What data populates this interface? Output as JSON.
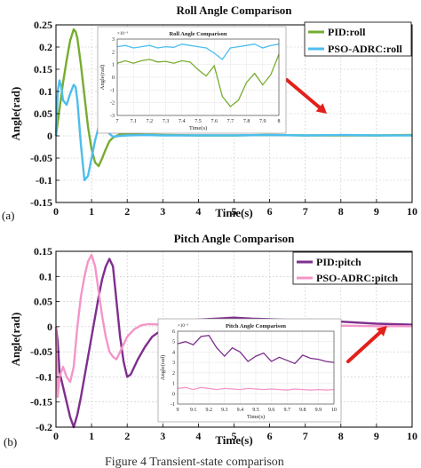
{
  "chart_data": [
    {
      "type": "line",
      "panel_label": "(a)",
      "title": "Roll Angle Comparison",
      "xlabel": "Time(s)",
      "ylabel": "Angle(rad)",
      "xlim": [
        0,
        10
      ],
      "ylim": [
        -0.15,
        0.25
      ],
      "xticks": [
        0,
        1,
        2,
        3,
        4,
        5,
        6,
        7,
        8,
        9,
        10
      ],
      "yticks": [
        -0.15,
        -0.1,
        -0.05,
        0,
        0.05,
        0.1,
        0.15,
        0.2,
        0.25
      ],
      "ytick_labels": [
        "-0.15",
        "-0.1",
        "-0.05",
        "0",
        "0.05",
        "0.1",
        "0.15",
        "0.2",
        "0.25"
      ],
      "grid": true,
      "legend": "top-right",
      "series": [
        {
          "name": "PID:roll",
          "color": "#77ac30",
          "x": [
            0,
            0.05,
            0.1,
            0.2,
            0.3,
            0.4,
            0.5,
            0.55,
            0.6,
            0.7,
            0.8,
            0.9,
            1.0,
            1.1,
            1.2,
            1.3,
            1.4,
            1.5,
            1.6,
            1.7,
            1.8,
            2.0,
            2.2,
            2.5,
            3,
            4,
            5,
            6,
            7,
            8,
            9,
            10
          ],
          "y": [
            0,
            0.03,
            0.06,
            0.12,
            0.17,
            0.215,
            0.24,
            0.235,
            0.22,
            0.16,
            0.09,
            0.02,
            -0.03,
            -0.06,
            -0.068,
            -0.05,
            -0.03,
            -0.012,
            -0.004,
            0,
            0.004,
            0.006,
            0.004,
            0.003,
            0.002,
            0.001,
            0.001,
            0.002,
            0.001,
            0.001,
            0.001,
            0.002
          ]
        },
        {
          "name": "PSO-ADRC:roll",
          "color": "#4dbeee",
          "x": [
            0,
            0.05,
            0.1,
            0.15,
            0.2,
            0.3,
            0.4,
            0.5,
            0.55,
            0.6,
            0.7,
            0.8,
            0.9,
            1.0,
            1.1,
            1.2,
            1.3,
            1.4,
            1.5,
            1.6,
            1.8,
            2.0,
            2.5,
            3,
            4,
            5,
            6,
            7,
            8,
            9,
            10
          ],
          "y": [
            0,
            0.1,
            0.125,
            0.11,
            0.08,
            0.07,
            0.095,
            0.115,
            0.11,
            0.08,
            -0.02,
            -0.1,
            -0.09,
            -0.05,
            -0.01,
            0.02,
            0.033,
            0.02,
            0.005,
            -0.002,
            0,
            0.001,
            0.002,
            0.001,
            0.001,
            0.001,
            0.002,
            0.001,
            0.002,
            0.001,
            0.001
          ]
        }
      ],
      "inset": {
        "title": "Roll Angle Comparison",
        "xlabel": "Time(s)",
        "ylabel": "Angle(rad)",
        "exponent_label": "×10⁻³",
        "xlim": [
          7,
          8
        ],
        "xticks": [
          7,
          7.1,
          7.2,
          7.3,
          7.4,
          7.5,
          7.6,
          7.7,
          7.8,
          7.9,
          8
        ],
        "xtick_labels": [
          "7",
          "7.1",
          "7.2",
          "7.3",
          "7.4",
          "7.5",
          "7.6",
          "7.7",
          "7.8",
          "7.9",
          "8"
        ],
        "ylim": [
          -3,
          3
        ],
        "yticks": [
          -3,
          -2,
          -1,
          0,
          1,
          2,
          3
        ],
        "series": [
          {
            "name": "PID:roll",
            "color": "#77ac30",
            "x": [
              7,
              7.05,
              7.1,
              7.15,
              7.2,
              7.25,
              7.3,
              7.35,
              7.4,
              7.45,
              7.5,
              7.55,
              7.6,
              7.65,
              7.7,
              7.75,
              7.8,
              7.85,
              7.9,
              7.95,
              8
            ],
            "y": [
              1.1,
              1.3,
              1.1,
              1.3,
              1.4,
              1.2,
              1.25,
              1.1,
              1.3,
              1.2,
              0.6,
              0.1,
              0.9,
              -1.5,
              -2.3,
              -1.8,
              -0.4,
              0.3,
              -0.6,
              0.2,
              1.8
            ]
          },
          {
            "name": "PSO-ADRC:roll",
            "color": "#4dbeee",
            "x": [
              7,
              7.05,
              7.1,
              7.15,
              7.2,
              7.25,
              7.3,
              7.35,
              7.4,
              7.45,
              7.5,
              7.55,
              7.6,
              7.65,
              7.7,
              7.75,
              7.8,
              7.85,
              7.9,
              7.95,
              8
            ],
            "y": [
              2.4,
              2.5,
              2.3,
              2.4,
              2.5,
              2.3,
              2.4,
              2.35,
              2.6,
              2.5,
              2.4,
              2.3,
              1.9,
              1.4,
              2.3,
              2.4,
              2.5,
              2.6,
              2.3,
              2.5,
              2.6
            ]
          }
        ]
      }
    },
    {
      "type": "line",
      "panel_label": "(b)",
      "title": "Pitch Angle Comparison",
      "xlabel": "Time(s)",
      "ylabel": "Angle(rad)",
      "xlim": [
        0,
        10
      ],
      "ylim": [
        -0.2,
        0.15
      ],
      "xticks": [
        0,
        1,
        2,
        3,
        4,
        5,
        6,
        7,
        8,
        9,
        10
      ],
      "yticks": [
        -0.2,
        -0.15,
        -0.1,
        -0.05,
        0,
        0.05,
        0.1,
        0.15
      ],
      "ytick_labels": [
        "-0.2",
        "-0.15",
        "-0.1",
        "-0.05",
        "0",
        "0.05",
        "0.1",
        "0.15"
      ],
      "grid": true,
      "legend": "top-right",
      "series": [
        {
          "name": "PID:pitch",
          "color": "#7e2f8e",
          "x": [
            0,
            0.05,
            0.1,
            0.2,
            0.3,
            0.4,
            0.5,
            0.6,
            0.7,
            0.8,
            0.9,
            1.0,
            1.1,
            1.2,
            1.3,
            1.4,
            1.5,
            1.6,
            1.7,
            1.8,
            1.9,
            2.0,
            2.1,
            2.3,
            2.5,
            2.7,
            3.0,
            3.5,
            4,
            4.5,
            5,
            5.5,
            6,
            7,
            8,
            9,
            10
          ],
          "y": [
            0,
            -0.03,
            -0.09,
            -0.12,
            -0.15,
            -0.18,
            -0.2,
            -0.175,
            -0.14,
            -0.1,
            -0.06,
            -0.02,
            0.02,
            0.06,
            0.095,
            0.12,
            0.135,
            0.12,
            0.05,
            -0.02,
            -0.07,
            -0.1,
            -0.095,
            -0.065,
            -0.04,
            -0.02,
            -0.005,
            0.008,
            0.014,
            0.016,
            0.018,
            0.016,
            0.015,
            0.012,
            0.01,
            0.006,
            0.004
          ]
        },
        {
          "name": "PSO-ADRC:pitch",
          "color": "#f495c8",
          "x": [
            0,
            0.05,
            0.1,
            0.2,
            0.3,
            0.4,
            0.5,
            0.6,
            0.7,
            0.8,
            0.9,
            1.0,
            1.1,
            1.2,
            1.3,
            1.4,
            1.5,
            1.6,
            1.7,
            1.8,
            1.9,
            2.0,
            2.2,
            2.4,
            2.6,
            3.0,
            3.5,
            4,
            5,
            6,
            7,
            8,
            9,
            10
          ],
          "y": [
            0,
            -0.14,
            -0.1,
            -0.08,
            -0.1,
            -0.11,
            -0.08,
            0.0,
            0.06,
            0.1,
            0.13,
            0.143,
            0.12,
            0.07,
            0.02,
            -0.02,
            -0.05,
            -0.06,
            -0.065,
            -0.05,
            -0.035,
            -0.02,
            -0.005,
            0.003,
            0.005,
            0.004,
            0.003,
            0.004,
            0.004,
            0.003,
            0.002,
            0.002,
            0.001,
            0.001
          ]
        }
      ],
      "inset": {
        "title": "Pitch Angle Comparison",
        "xlabel": "Time(s)",
        "ylabel": "Angle(rad)",
        "exponent_label": "×10⁻³",
        "xlim": [
          0,
          1
        ],
        "xticks": [
          0,
          0.1,
          0.2,
          0.3,
          0.4,
          0.5,
          0.6,
          0.7,
          0.8,
          0.9,
          1
        ],
        "xtick_labels": [
          "9",
          "9.1",
          "9.2",
          "9.3",
          "9.4",
          "9.5",
          "9.6",
          "9.7",
          "9.8",
          "9.9",
          "10"
        ],
        "ylim": [
          -1,
          6
        ],
        "yticks": [
          -1,
          0,
          1,
          2,
          3,
          4,
          5,
          6
        ],
        "series": [
          {
            "name": "PID:pitch",
            "color": "#7e2f8e",
            "x": [
              0,
              0.05,
              0.1,
              0.15,
              0.2,
              0.25,
              0.3,
              0.35,
              0.4,
              0.45,
              0.5,
              0.55,
              0.6,
              0.65,
              0.7,
              0.75,
              0.8,
              0.85,
              0.9,
              0.95,
              1
            ],
            "y": [
              4.8,
              5.0,
              4.7,
              5.5,
              5.6,
              4.4,
              3.6,
              4.4,
              4.0,
              3.1,
              3.6,
              3.9,
              3.1,
              3.5,
              3.2,
              2.9,
              3.7,
              3.4,
              3.3,
              3.1,
              3.0
            ]
          },
          {
            "name": "PSO-ADRC:pitch",
            "color": "#f495c8",
            "x": [
              0,
              0.05,
              0.1,
              0.15,
              0.2,
              0.25,
              0.3,
              0.35,
              0.4,
              0.45,
              0.5,
              0.55,
              0.6,
              0.65,
              0.7,
              0.75,
              0.8,
              0.85,
              0.9,
              0.95,
              1
            ],
            "y": [
              0.5,
              0.6,
              0.4,
              0.6,
              0.5,
              0.4,
              0.5,
              0.45,
              0.4,
              0.5,
              0.45,
              0.4,
              0.45,
              0.4,
              0.35,
              0.45,
              0.4,
              0.35,
              0.4,
              0.35,
              0.4
            ]
          }
        ]
      }
    }
  ],
  "caption": "Figure 4 Transient-state comparison"
}
